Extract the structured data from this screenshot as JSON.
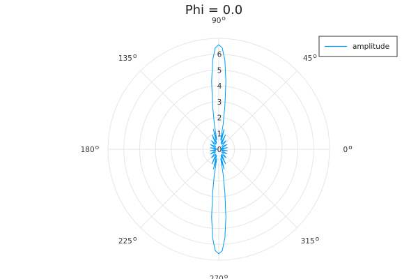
{
  "chart_data": {
    "type": "polar-line",
    "title": "Phi = 0.0",
    "angular_ticks": [
      {
        "deg": 0,
        "label": "0"
      },
      {
        "deg": 45,
        "label": "45"
      },
      {
        "deg": 90,
        "label": "90"
      },
      {
        "deg": 135,
        "label": "135"
      },
      {
        "deg": 180,
        "label": "180"
      },
      {
        "deg": 225,
        "label": "225"
      },
      {
        "deg": 270,
        "label": "270"
      },
      {
        "deg": 315,
        "label": "315"
      }
    ],
    "angular_unit_mark": "o",
    "radial_ticks": [
      0,
      1,
      2,
      3,
      4,
      5,
      6
    ],
    "rlim": [
      0,
      7
    ],
    "grid": true,
    "legend": {
      "position": "top-right"
    },
    "series": [
      {
        "name": "amplitude",
        "color": "#009AFA",
        "theta_deg": [
          0,
          10,
          20,
          30,
          40,
          50,
          60,
          65,
          70,
          75,
          78,
          80,
          82,
          84,
          86,
          88,
          90,
          92,
          94,
          96,
          98,
          100,
          102,
          105,
          110,
          115,
          120,
          130,
          140,
          150,
          160,
          170,
          180,
          190,
          200,
          210,
          220,
          230,
          240,
          245,
          250,
          255,
          258,
          260,
          262,
          264,
          266,
          268,
          270,
          272,
          274,
          276,
          278,
          280,
          282,
          285,
          290,
          295,
          300,
          310,
          320,
          330,
          340,
          350,
          360
        ],
        "r": [
          0.1,
          0.55,
          0.2,
          0.6,
          0.25,
          0.7,
          0.35,
          1.0,
          0.4,
          1.3,
          0.6,
          1.6,
          2.8,
          4.3,
          5.6,
          6.4,
          6.6,
          6.4,
          5.6,
          4.3,
          2.8,
          1.6,
          0.6,
          1.3,
          0.4,
          1.0,
          0.35,
          0.7,
          0.25,
          0.6,
          0.2,
          0.55,
          0.1,
          0.55,
          0.2,
          0.6,
          0.25,
          0.7,
          0.35,
          1.0,
          0.4,
          1.3,
          0.6,
          1.6,
          2.8,
          4.3,
          5.6,
          6.4,
          6.6,
          6.4,
          5.6,
          4.3,
          2.8,
          1.6,
          0.6,
          1.3,
          0.4,
          1.0,
          0.35,
          0.7,
          0.25,
          0.6,
          0.2,
          0.55,
          0.1
        ]
      }
    ]
  }
}
